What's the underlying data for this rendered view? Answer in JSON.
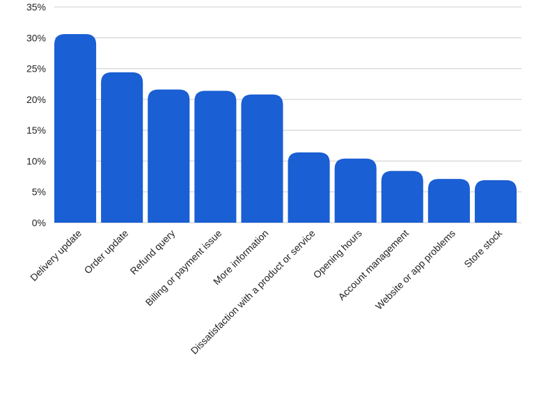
{
  "chart_data": {
    "type": "bar",
    "title": "",
    "xlabel": "",
    "ylabel": "",
    "categories": [
      "Delivery update",
      "Order update",
      "Refund query",
      "Billing or payment issue",
      "More information",
      "Dissatisfaction with a product or service",
      "Opening hours",
      "Account management",
      "Website or app problems",
      "Store stock"
    ],
    "values": [
      30.6,
      24.4,
      21.6,
      21.4,
      20.8,
      11.4,
      10.4,
      8.4,
      7.1,
      6.9
    ],
    "ylim": [
      0,
      35
    ],
    "yticks": [
      0,
      5,
      10,
      15,
      20,
      25,
      30,
      35
    ],
    "ytick_labels": [
      "0%",
      "5%",
      "10%",
      "15%",
      "20%",
      "25%",
      "30%",
      "35%"
    ],
    "grid": true,
    "legend": "none",
    "bar_color": "#1a5fd3"
  }
}
